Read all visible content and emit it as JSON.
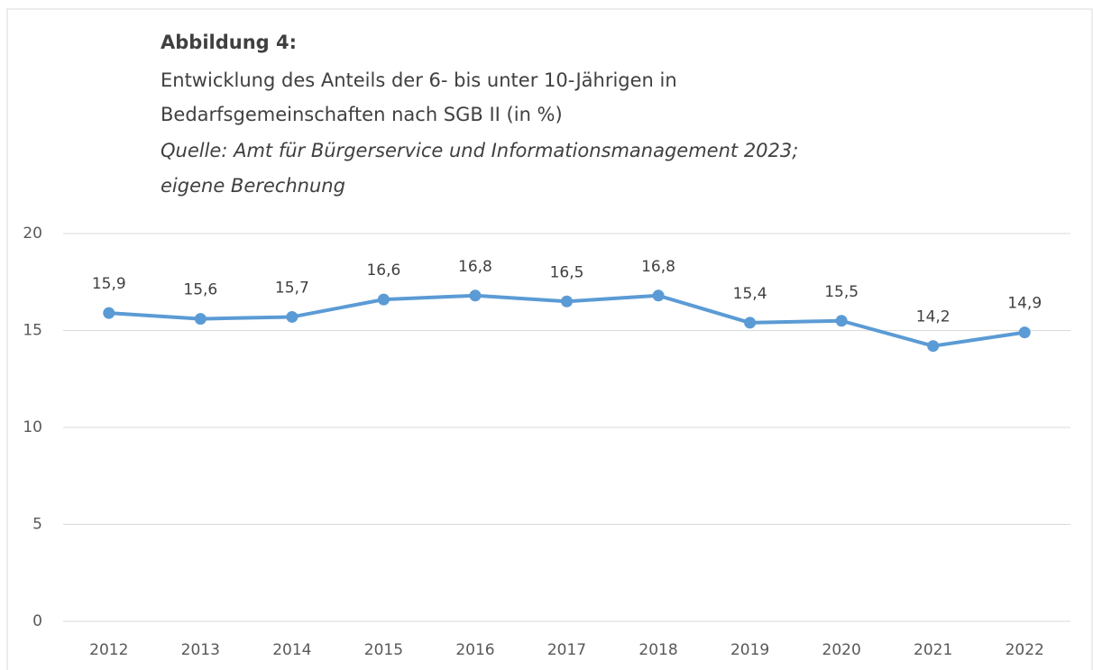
{
  "chart_data": {
    "type": "line",
    "title": "Abbildung 4:",
    "subtitle": [
      "Entwicklung des Anteils der 6- bis unter 10-Jährigen in",
      "Bedarfsgemeinschaften nach SGB II (in %)"
    ],
    "source": [
      "Quelle: Amt für Bürgerservice und Informationsmanagement 2023;",
      "eigene Berechnung"
    ],
    "categories": [
      "2012",
      "2013",
      "2014",
      "2015",
      "2016",
      "2017",
      "2018",
      "2019",
      "2020",
      "2021",
      "2022"
    ],
    "series": [
      {
        "name": "Anteil",
        "color": "#5b9bd5",
        "values": [
          15.9,
          15.6,
          15.7,
          16.6,
          16.8,
          16.5,
          16.8,
          15.4,
          15.5,
          14.2,
          14.9
        ],
        "value_labels": [
          "15,9",
          "15,6",
          "15,7",
          "16,6",
          "16,8",
          "16,5",
          "16,8",
          "15,4",
          "15,5",
          "14,2",
          "14,9"
        ]
      }
    ],
    "ylim": [
      0,
      20
    ],
    "yticks": [
      0,
      5,
      10,
      15,
      20
    ],
    "grid": true
  }
}
